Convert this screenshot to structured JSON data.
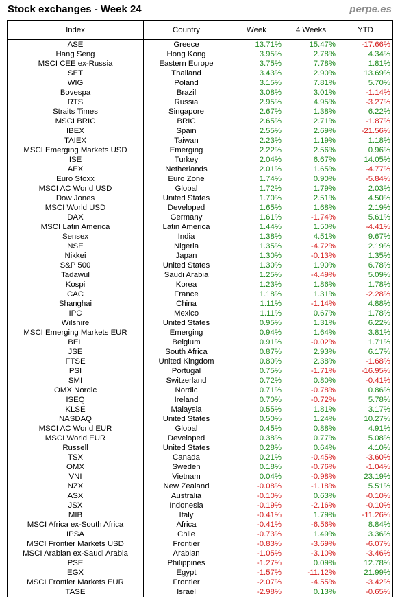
{
  "title": "Stock exchanges - Week 24",
  "brand": "perpe.es",
  "colors": {
    "positive": "#1e8a1e",
    "negative": "#d62020",
    "brand": "#8c8c8c"
  },
  "chart_data": {
    "type": "table",
    "columns": [
      "Index",
      "Country",
      "Week",
      "4 Weeks",
      "YTD"
    ],
    "rows": [
      {
        "index": "ASE",
        "country": "Greece",
        "week": "13.71%",
        "four_weeks": "15.47%",
        "ytd": "-17.66%"
      },
      {
        "index": "Hang Seng",
        "country": "Hong Kong",
        "week": "3.95%",
        "four_weeks": "2.78%",
        "ytd": "4.34%"
      },
      {
        "index": "MSCI CEE ex-Russia",
        "country": "Eastern Europe",
        "week": "3.75%",
        "four_weeks": "7.78%",
        "ytd": "1.81%"
      },
      {
        "index": "SET",
        "country": "Thailand",
        "week": "3.43%",
        "four_weeks": "2.90%",
        "ytd": "13.69%"
      },
      {
        "index": "WIG",
        "country": "Poland",
        "week": "3.15%",
        "four_weeks": "7.81%",
        "ytd": "5.70%"
      },
      {
        "index": "Bovespa",
        "country": "Brazil",
        "week": "3.08%",
        "four_weeks": "3.01%",
        "ytd": "-1.14%"
      },
      {
        "index": "RTS",
        "country": "Russia",
        "week": "2.95%",
        "four_weeks": "4.95%",
        "ytd": "-3.27%"
      },
      {
        "index": "Straits Times",
        "country": "Singapore",
        "week": "2.67%",
        "four_weeks": "1.38%",
        "ytd": "6.22%"
      },
      {
        "index": "MSCI BRIC",
        "country": "BRIC",
        "week": "2.65%",
        "four_weeks": "2.71%",
        "ytd": "-1.87%"
      },
      {
        "index": "IBEX",
        "country": "Spain",
        "week": "2.55%",
        "four_weeks": "2.69%",
        "ytd": "-21.56%"
      },
      {
        "index": "TAIEX",
        "country": "Taiwan",
        "week": "2.23%",
        "four_weeks": "1.19%",
        "ytd": "1.18%"
      },
      {
        "index": "MSCI Emerging Markets USD",
        "country": "Emerging",
        "week": "2.22%",
        "four_weeks": "2.56%",
        "ytd": "0.96%"
      },
      {
        "index": "ISE",
        "country": "Turkey",
        "week": "2.04%",
        "four_weeks": "6.67%",
        "ytd": "14.05%"
      },
      {
        "index": "AEX",
        "country": "Netherlands",
        "week": "2.01%",
        "four_weeks": "1.65%",
        "ytd": "-4.77%"
      },
      {
        "index": "Euro Stoxx",
        "country": "Euro Zone",
        "week": "1.74%",
        "four_weeks": "0.90%",
        "ytd": "-5.84%"
      },
      {
        "index": "MSCI AC World USD",
        "country": "Global",
        "week": "1.72%",
        "four_weeks": "1.79%",
        "ytd": "2.03%"
      },
      {
        "index": "Dow Jones",
        "country": "United States",
        "week": "1.70%",
        "four_weeks": "2.51%",
        "ytd": "4.50%"
      },
      {
        "index": "MSCI World USD",
        "country": "Developed",
        "week": "1.65%",
        "four_weeks": "1.68%",
        "ytd": "2.19%"
      },
      {
        "index": "DAX",
        "country": "Germany",
        "week": "1.61%",
        "four_weeks": "-1.74%",
        "ytd": "5.61%"
      },
      {
        "index": "MSCI Latin America",
        "country": "Latin America",
        "week": "1.44%",
        "four_weeks": "1.50%",
        "ytd": "-4.41%"
      },
      {
        "index": "Sensex",
        "country": "India",
        "week": "1.38%",
        "four_weeks": "4.51%",
        "ytd": "9.67%"
      },
      {
        "index": "NSE",
        "country": "Nigeria",
        "week": "1.35%",
        "four_weeks": "-4.72%",
        "ytd": "2.19%"
      },
      {
        "index": "Nikkei",
        "country": "Japan",
        "week": "1.30%",
        "four_weeks": "-0.13%",
        "ytd": "1.35%"
      },
      {
        "index": "S&P 500",
        "country": "United States",
        "week": "1.30%",
        "four_weeks": "1.90%",
        "ytd": "6.78%"
      },
      {
        "index": "Tadawul",
        "country": "Saudi Arabia",
        "week": "1.25%",
        "four_weeks": "-4.49%",
        "ytd": "5.09%"
      },
      {
        "index": "Kospi",
        "country": "Korea",
        "week": "1.23%",
        "four_weeks": "1.86%",
        "ytd": "1.78%"
      },
      {
        "index": "CAC",
        "country": "France",
        "week": "1.18%",
        "four_weeks": "1.31%",
        "ytd": "-2.28%"
      },
      {
        "index": "Shanghai",
        "country": "China",
        "week": "1.11%",
        "four_weeks": "-1.14%",
        "ytd": "4.88%"
      },
      {
        "index": "IPC",
        "country": "Mexico",
        "week": "1.11%",
        "four_weeks": "0.67%",
        "ytd": "1.78%"
      },
      {
        "index": "Wilshire",
        "country": "United States",
        "week": "0.95%",
        "four_weeks": "1.31%",
        "ytd": "6.22%"
      },
      {
        "index": "MSCI Emerging Markets EUR",
        "country": "Emerging",
        "week": "0.94%",
        "four_weeks": "1.64%",
        "ytd": "3.81%"
      },
      {
        "index": "BEL",
        "country": "Belgium",
        "week": "0.91%",
        "four_weeks": "-0.02%",
        "ytd": "1.71%"
      },
      {
        "index": "JSE",
        "country": "South Africa",
        "week": "0.87%",
        "four_weeks": "2.93%",
        "ytd": "6.17%"
      },
      {
        "index": "FTSE",
        "country": "United Kingdom",
        "week": "0.80%",
        "four_weeks": "2.38%",
        "ytd": "-1.68%"
      },
      {
        "index": "PSI",
        "country": "Portugal",
        "week": "0.75%",
        "four_weeks": "-1.71%",
        "ytd": "-16.95%"
      },
      {
        "index": "SMI",
        "country": "Switzerland",
        "week": "0.72%",
        "four_weeks": "0.80%",
        "ytd": "-0.41%"
      },
      {
        "index": "OMX Nordic",
        "country": "Nordic",
        "week": "0.71%",
        "four_weeks": "-0.78%",
        "ytd": "0.86%"
      },
      {
        "index": "ISEQ",
        "country": "Ireland",
        "week": "0.70%",
        "four_weeks": "-0.72%",
        "ytd": "5.78%"
      },
      {
        "index": "KLSE",
        "country": "Malaysia",
        "week": "0.55%",
        "four_weeks": "1.81%",
        "ytd": "3.17%"
      },
      {
        "index": "NASDAQ",
        "country": "United States",
        "week": "0.50%",
        "four_weeks": "1.24%",
        "ytd": "10.27%"
      },
      {
        "index": "MSCI AC World EUR",
        "country": "Global",
        "week": "0.45%",
        "four_weeks": "0.88%",
        "ytd": "4.91%"
      },
      {
        "index": "MSCI World EUR",
        "country": "Developed",
        "week": "0.38%",
        "four_weeks": "0.77%",
        "ytd": "5.08%"
      },
      {
        "index": "Russell",
        "country": "United States",
        "week": "0.28%",
        "four_weeks": "0.64%",
        "ytd": "4.10%"
      },
      {
        "index": "TSX",
        "country": "Canada",
        "week": "0.21%",
        "four_weeks": "-0.45%",
        "ytd": "-3.60%"
      },
      {
        "index": "OMX",
        "country": "Sweden",
        "week": "0.18%",
        "four_weeks": "-0.76%",
        "ytd": "-1.04%"
      },
      {
        "index": "VNI",
        "country": "Vietnam",
        "week": "0.04%",
        "four_weeks": "-0.98%",
        "ytd": "23.19%"
      },
      {
        "index": "NZX",
        "country": "New Zealand",
        "week": "-0.08%",
        "four_weeks": "-1.18%",
        "ytd": "5.51%"
      },
      {
        "index": "ASX",
        "country": "Australia",
        "week": "-0.10%",
        "four_weeks": "0.63%",
        "ytd": "-0.10%"
      },
      {
        "index": "JSX",
        "country": "Indonesia",
        "week": "-0.19%",
        "four_weeks": "-2.16%",
        "ytd": "-0.10%"
      },
      {
        "index": "MIB",
        "country": "Italy",
        "week": "-0.41%",
        "four_weeks": "1.79%",
        "ytd": "-11.26%"
      },
      {
        "index": "MSCI Africa ex-South Africa",
        "country": "Africa",
        "week": "-0.41%",
        "four_weeks": "-6.56%",
        "ytd": "8.84%"
      },
      {
        "index": "IPSA",
        "country": "Chile",
        "week": "-0.73%",
        "four_weeks": "1.49%",
        "ytd": "3.36%"
      },
      {
        "index": "MSCI Frontier Markets USD",
        "country": "Frontier",
        "week": "-0.83%",
        "four_weeks": "-3.69%",
        "ytd": "-6.07%"
      },
      {
        "index": "MSCI Arabian ex-Saudi Arabia",
        "country": "Arabian",
        "week": "-1.05%",
        "four_weeks": "-3.10%",
        "ytd": "-3.46%"
      },
      {
        "index": "PSE",
        "country": "Philippines",
        "week": "-1.27%",
        "four_weeks": "0.09%",
        "ytd": "12.78%"
      },
      {
        "index": "EGX",
        "country": "Egypt",
        "week": "-1.57%",
        "four_weeks": "-11.12%",
        "ytd": "21.99%"
      },
      {
        "index": "MSCI Frontier Markets EUR",
        "country": "Frontier",
        "week": "-2.07%",
        "four_weeks": "-4.55%",
        "ytd": "-3.42%"
      },
      {
        "index": "TASE",
        "country": "Israel",
        "week": "-2.98%",
        "four_weeks": "0.13%",
        "ytd": "-0.65%"
      }
    ]
  }
}
